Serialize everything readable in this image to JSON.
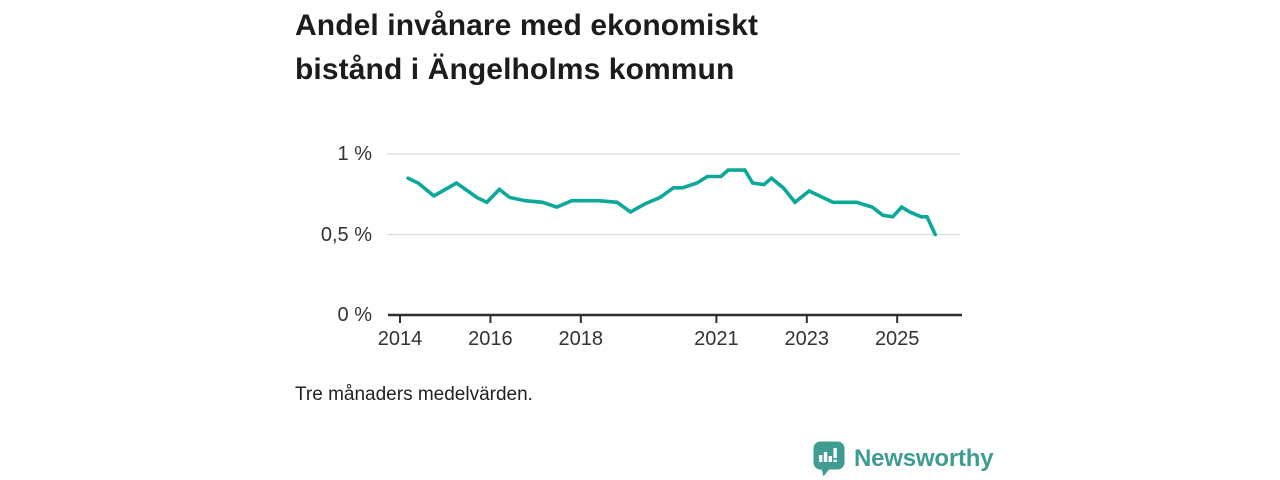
{
  "title": {
    "line1": "Andel invånare med ekonomiskt",
    "line2": "bistånd i Ängelholms kommun"
  },
  "footnote": "Tre månaders medelvärden.",
  "branding": {
    "name": "Newsworthy",
    "icon": "speech-bubble-bar-chart-icon",
    "accent_color": "#3f9c92"
  },
  "chart_data": {
    "type": "line",
    "title": "Andel invånare med ekonomiskt bistånd i Ängelholms kommun",
    "note": "Tre månaders medelvärden.",
    "unit": "%",
    "xlabel": "",
    "ylabel": "",
    "grid": "horizontal",
    "legend_position": "none",
    "line_color": "#0ca89a",
    "axis_color": "#2d2d2d",
    "gridline_color": "#d9d9d9",
    "x_range": [
      2013.7,
      2026.4
    ],
    "y_range": [
      0,
      1.17
    ],
    "x_ticks": [
      {
        "value": 2014,
        "label": "2014"
      },
      {
        "value": 2016,
        "label": "2016"
      },
      {
        "value": 2018,
        "label": "2018"
      },
      {
        "value": 2021,
        "label": "2021"
      },
      {
        "value": 2023,
        "label": "2023"
      },
      {
        "value": 2025,
        "label": "2025"
      }
    ],
    "y_ticks": [
      {
        "value": 0,
        "label": "0 %"
      },
      {
        "value": 0.5,
        "label": "0,5 %"
      },
      {
        "value": 1,
        "label": "1 %"
      }
    ],
    "series": [
      {
        "name": "Andel invånare med ekonomiskt bistånd",
        "points": [
          [
            2014.18,
            0.85
          ],
          [
            2014.4,
            0.82
          ],
          [
            2014.75,
            0.74
          ],
          [
            2015.25,
            0.82
          ],
          [
            2015.55,
            0.76
          ],
          [
            2015.7,
            0.73
          ],
          [
            2015.92,
            0.7
          ],
          [
            2016.2,
            0.78
          ],
          [
            2016.43,
            0.73
          ],
          [
            2016.77,
            0.71
          ],
          [
            2017.15,
            0.7
          ],
          [
            2017.47,
            0.67
          ],
          [
            2017.8,
            0.71
          ],
          [
            2018.4,
            0.71
          ],
          [
            2018.8,
            0.7
          ],
          [
            2019.1,
            0.64
          ],
          [
            2019.42,
            0.69
          ],
          [
            2019.75,
            0.73
          ],
          [
            2020.05,
            0.79
          ],
          [
            2020.25,
            0.79
          ],
          [
            2020.57,
            0.82
          ],
          [
            2020.8,
            0.86
          ],
          [
            2021.1,
            0.86
          ],
          [
            2021.26,
            0.9
          ],
          [
            2021.63,
            0.9
          ],
          [
            2021.8,
            0.82
          ],
          [
            2022.05,
            0.81
          ],
          [
            2022.22,
            0.85
          ],
          [
            2022.48,
            0.79
          ],
          [
            2022.74,
            0.7
          ],
          [
            2023.05,
            0.77
          ],
          [
            2023.28,
            0.74
          ],
          [
            2023.58,
            0.7
          ],
          [
            2024.1,
            0.7
          ],
          [
            2024.45,
            0.67
          ],
          [
            2024.68,
            0.62
          ],
          [
            2024.9,
            0.61
          ],
          [
            2025.1,
            0.67
          ],
          [
            2025.28,
            0.64
          ],
          [
            2025.53,
            0.61
          ],
          [
            2025.66,
            0.61
          ],
          [
            2025.84,
            0.5
          ]
        ]
      }
    ]
  }
}
